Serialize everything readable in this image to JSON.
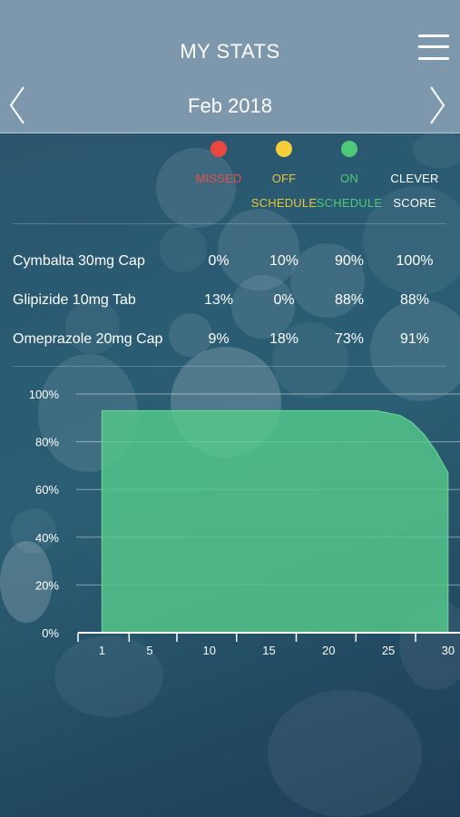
{
  "header": {
    "title": "MY STATS",
    "month": "Feb 2018",
    "menu_icon": "hamburger-menu-icon",
    "prev_icon": "chevron-left-icon",
    "next_icon": "chevron-right-icon"
  },
  "legend": [
    {
      "line1": "MISSED",
      "line2": "",
      "color": "#e8483f",
      "text_color": "#e0504a"
    },
    {
      "line1": "OFF",
      "line2": "SCHEDULE",
      "color": "#f4cf3a",
      "text_color": "#e8c43a"
    },
    {
      "line1": "ON",
      "line2": "SCHEDULE",
      "color": "#4fc877",
      "text_color": "#4fc877"
    },
    {
      "line1": "CLEVER",
      "line2": "SCORE",
      "color": "",
      "text_color": "#ffffff"
    }
  ],
  "medications": [
    {
      "name": "Cymbalta 30mg Cap",
      "missed": "0%",
      "off": "10%",
      "on": "90%",
      "score": "100%"
    },
    {
      "name": "Glipizide 10mg Tab",
      "missed": "13%",
      "off": "0%",
      "on": "88%",
      "score": "88%"
    },
    {
      "name": "Omeprazole 20mg Cap",
      "missed": "9%",
      "off": "18%",
      "on": "73%",
      "score": "91%"
    }
  ],
  "chart_data": {
    "type": "area",
    "x": [
      1,
      5,
      10,
      15,
      20,
      24,
      25,
      26,
      27,
      28,
      29,
      30
    ],
    "values": [
      93,
      93,
      93,
      93,
      93,
      93,
      92,
      91,
      88,
      83,
      76,
      67
    ],
    "y_ticks": [
      "0%",
      "20%",
      "40%",
      "60%",
      "80%",
      "100%"
    ],
    "x_ticks": [
      "1",
      "5",
      "10",
      "15",
      "20",
      "25",
      "30"
    ],
    "xlim": [
      -1,
      31
    ],
    "ylim": [
      0,
      100
    ],
    "grid": true,
    "fill_color": "#55c98a"
  }
}
